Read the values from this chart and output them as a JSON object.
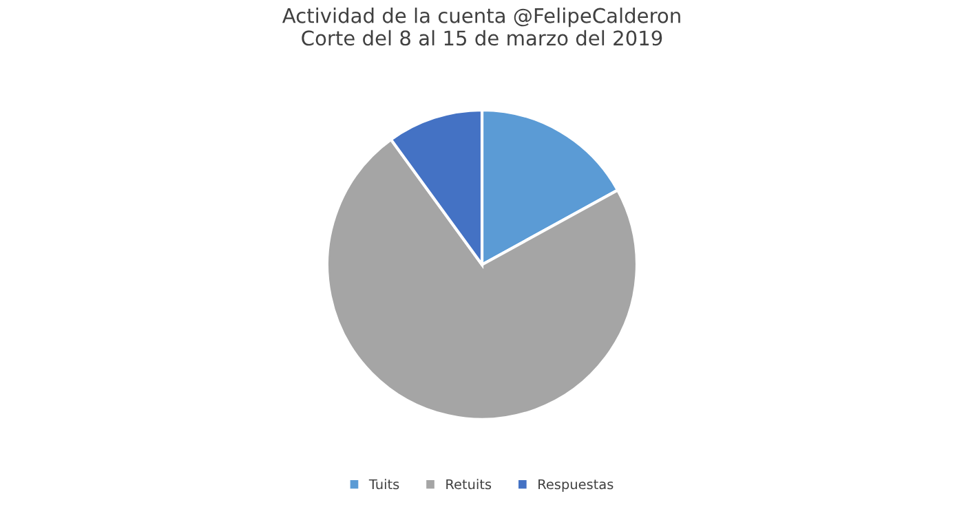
{
  "chart_data": {
    "type": "pie",
    "title": "Actividad de la cuenta @FelipeCalderon\nCorte del 8 al 15 de marzo del 2019",
    "categories": [
      "Tuits",
      "Retuits",
      "Respuestas"
    ],
    "values": [
      17,
      73,
      10
    ],
    "colors": [
      "#5b9bd5",
      "#a5a5a5",
      "#4472c4"
    ],
    "legend": "bottom"
  }
}
